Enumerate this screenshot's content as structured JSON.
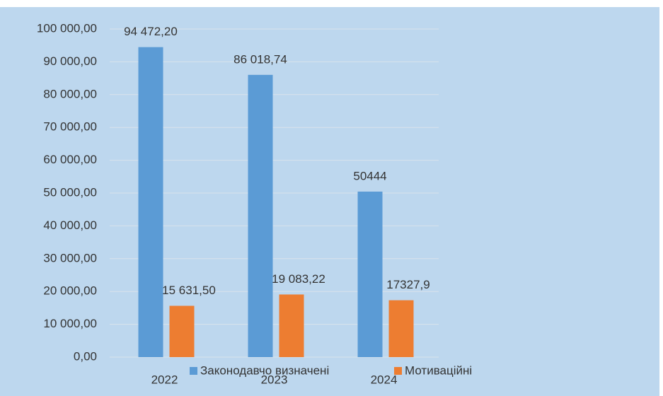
{
  "chart_data": {
    "type": "bar",
    "categories": [
      "2022",
      "2023",
      "2024"
    ],
    "series": [
      {
        "name": "Законодавчо визначені",
        "color": "#5b9bd5",
        "values": [
          94472.2,
          86018.74,
          50444
        ],
        "value_labels": [
          "94 472,20",
          "86 018,74",
          "50444"
        ]
      },
      {
        "name": "Мотиваційні",
        "color": "#ed7d31",
        "values": [
          15631.5,
          19083.22,
          17327.9
        ],
        "value_labels": [
          "15 631,50",
          "19 083,22",
          "17327,9"
        ]
      }
    ],
    "ylim": [
      0,
      100000
    ],
    "yticks": [
      {
        "value": 0,
        "label": "0,00"
      },
      {
        "value": 10000,
        "label": "10 000,00"
      },
      {
        "value": 20000,
        "label": "20 000,00"
      },
      {
        "value": 30000,
        "label": "30 000,00"
      },
      {
        "value": 40000,
        "label": "40 000,00"
      },
      {
        "value": 50000,
        "label": "50 000,00"
      },
      {
        "value": 60000,
        "label": "60 000,00"
      },
      {
        "value": 70000,
        "label": "70 000,00"
      },
      {
        "value": 80000,
        "label": "80 000,00"
      },
      {
        "value": 90000,
        "label": "90 000,00"
      },
      {
        "value": 100000,
        "label": "100 000,00"
      }
    ],
    "grid": true,
    "legend": "bottom"
  }
}
